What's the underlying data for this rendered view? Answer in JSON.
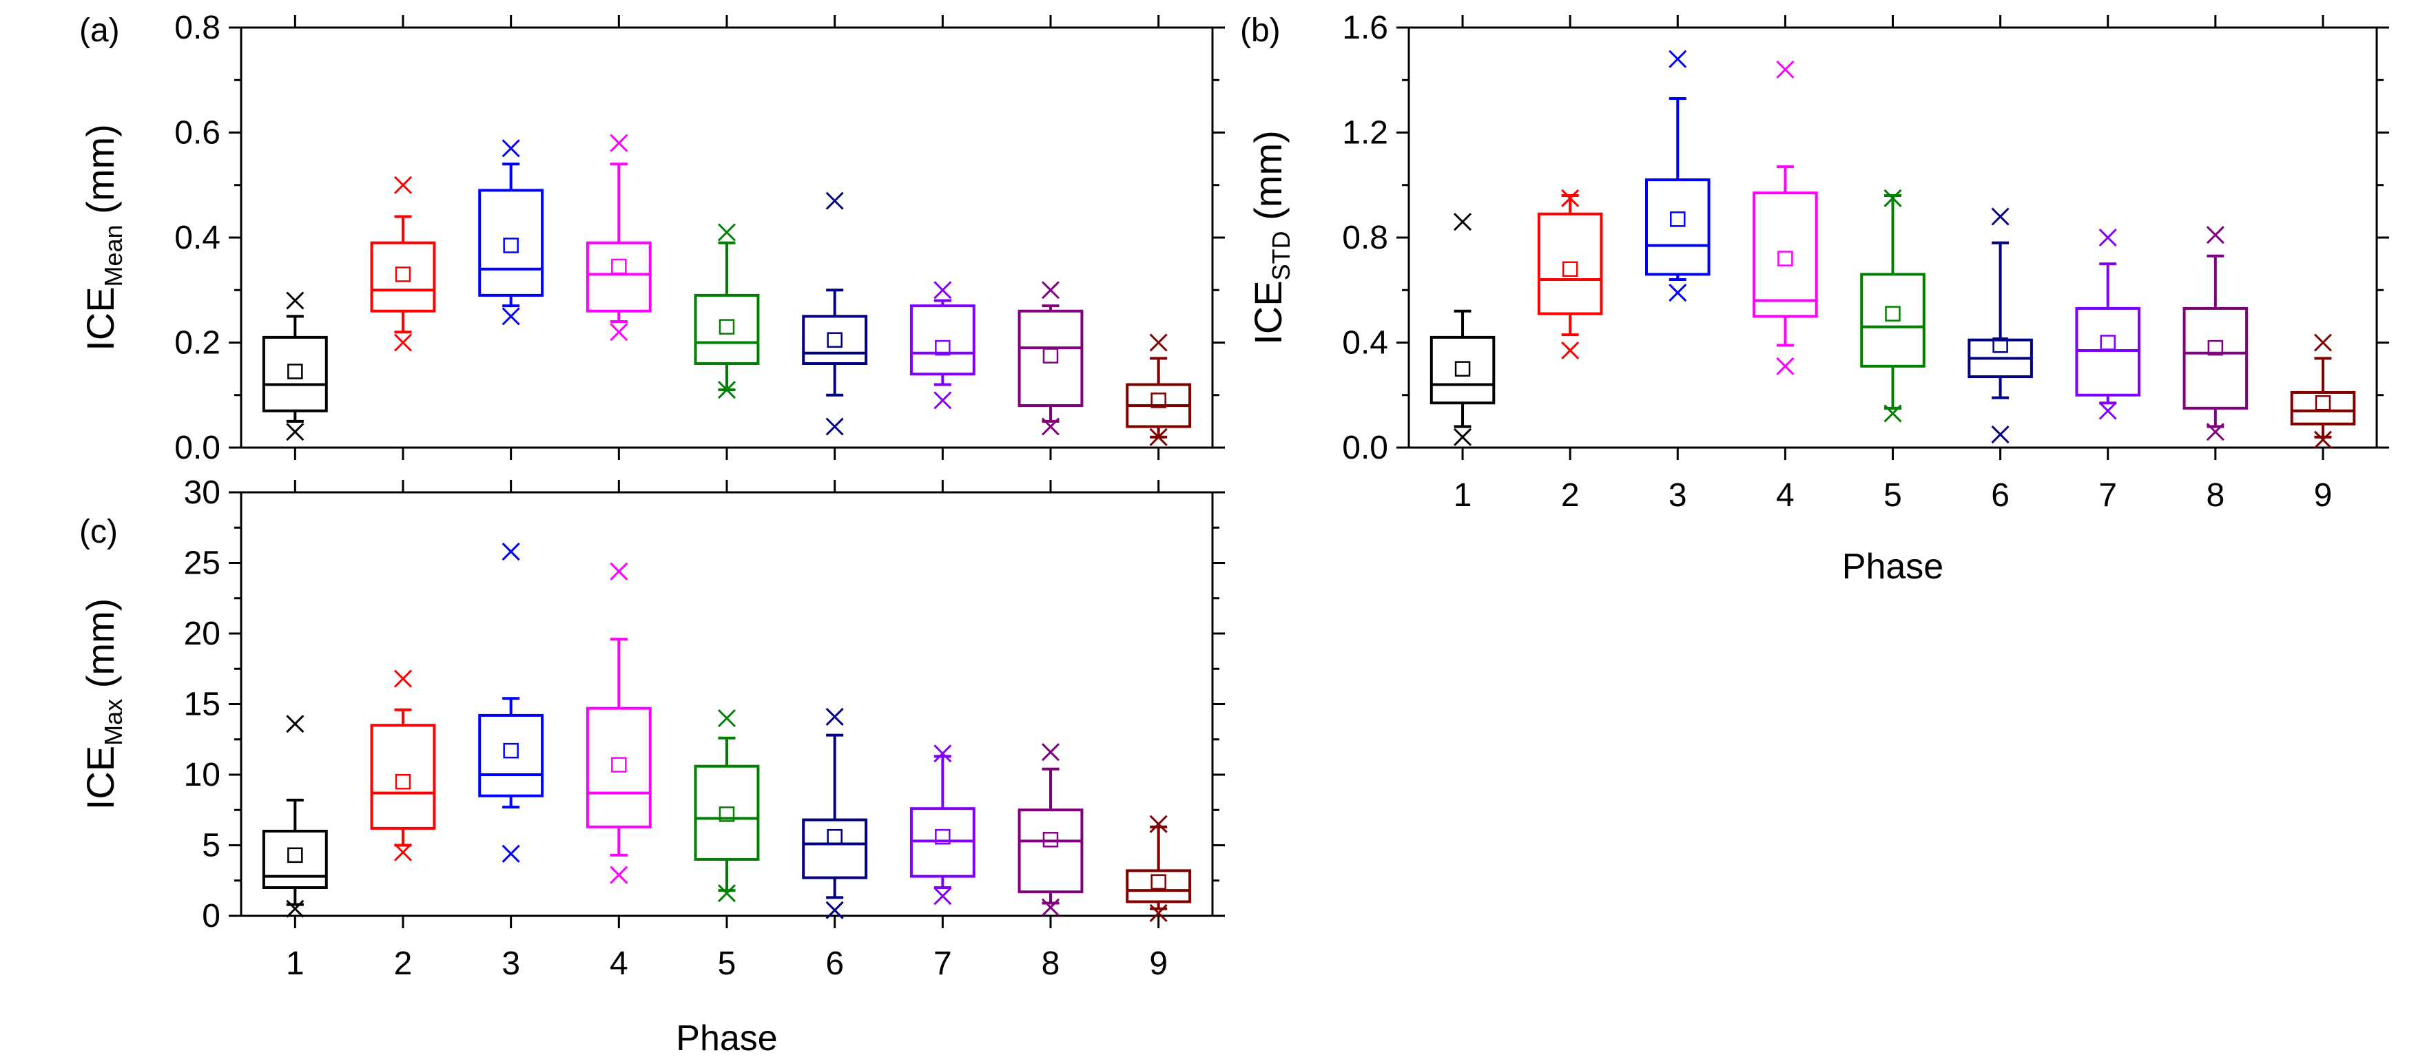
{
  "chart_data": [
    {
      "type": "box",
      "panel_label": "(a)",
      "ylabel_main": "ICE",
      "ylabel_sub": "Mean",
      "ylabel_unit": " (mm)",
      "xlabel": "",
      "categories": [
        "1",
        "2",
        "3",
        "4",
        "5",
        "6",
        "7",
        "8",
        "9"
      ],
      "ylim": [
        0,
        0.8
      ],
      "yticks": [
        0.0,
        0.2,
        0.4,
        0.6,
        0.8
      ],
      "ytick_labels": [
        "0.0",
        "0.2",
        "0.4",
        "0.6",
        "0.8"
      ],
      "show_xtick_labels": false,
      "boxes": [
        {
          "q1": 0.07,
          "median": 0.12,
          "q3": 0.21,
          "whisker_low": 0.05,
          "whisker_high": 0.25,
          "mean": 0.145,
          "min": 0.03,
          "max": 0.28
        },
        {
          "q1": 0.26,
          "median": 0.3,
          "q3": 0.39,
          "whisker_low": 0.22,
          "whisker_high": 0.44,
          "mean": 0.33,
          "min": 0.2,
          "max": 0.5
        },
        {
          "q1": 0.29,
          "median": 0.34,
          "q3": 0.49,
          "whisker_low": 0.27,
          "whisker_high": 0.54,
          "mean": 0.385,
          "min": 0.25,
          "max": 0.57
        },
        {
          "q1": 0.26,
          "median": 0.33,
          "q3": 0.39,
          "whisker_low": 0.24,
          "whisker_high": 0.54,
          "mean": 0.345,
          "min": 0.22,
          "max": 0.58
        },
        {
          "q1": 0.16,
          "median": 0.2,
          "q3": 0.29,
          "whisker_low": 0.11,
          "whisker_high": 0.39,
          "mean": 0.23,
          "min": 0.11,
          "max": 0.41
        },
        {
          "q1": 0.16,
          "median": 0.18,
          "q3": 0.25,
          "whisker_low": 0.1,
          "whisker_high": 0.3,
          "mean": 0.205,
          "min": 0.04,
          "max": 0.47
        },
        {
          "q1": 0.14,
          "median": 0.18,
          "q3": 0.27,
          "whisker_low": 0.12,
          "whisker_high": 0.28,
          "mean": 0.19,
          "min": 0.09,
          "max": 0.3
        },
        {
          "q1": 0.08,
          "median": 0.19,
          "q3": 0.26,
          "whisker_low": 0.05,
          "whisker_high": 0.27,
          "mean": 0.175,
          "min": 0.04,
          "max": 0.3
        },
        {
          "q1": 0.04,
          "median": 0.08,
          "q3": 0.12,
          "whisker_low": 0.02,
          "whisker_high": 0.17,
          "mean": 0.09,
          "min": 0.02,
          "max": 0.2
        }
      ]
    },
    {
      "type": "box",
      "panel_label": "(b)",
      "ylabel_main": "ICE",
      "ylabel_sub": "STD",
      "ylabel_unit": " (mm)",
      "xlabel": "Phase",
      "categories": [
        "1",
        "2",
        "3",
        "4",
        "5",
        "6",
        "7",
        "8",
        "9"
      ],
      "ylim": [
        0,
        1.6
      ],
      "yticks": [
        0.0,
        0.4,
        0.8,
        1.2,
        1.6
      ],
      "ytick_labels": [
        "0.0",
        "0.4",
        "0.8",
        "1.2",
        "1.6"
      ],
      "show_xtick_labels": true,
      "boxes": [
        {
          "q1": 0.17,
          "median": 0.24,
          "q3": 0.42,
          "whisker_low": 0.08,
          "whisker_high": 0.52,
          "mean": 0.3,
          "min": 0.04,
          "max": 0.86
        },
        {
          "q1": 0.51,
          "median": 0.64,
          "q3": 0.89,
          "whisker_low": 0.43,
          "whisker_high": 0.96,
          "mean": 0.68,
          "min": 0.37,
          "max": 0.95
        },
        {
          "q1": 0.66,
          "median": 0.77,
          "q3": 1.02,
          "whisker_low": 0.64,
          "whisker_high": 1.33,
          "mean": 0.87,
          "min": 0.59,
          "max": 1.48
        },
        {
          "q1": 0.5,
          "median": 0.56,
          "q3": 0.97,
          "whisker_low": 0.39,
          "whisker_high": 1.07,
          "mean": 0.72,
          "min": 0.31,
          "max": 1.44
        },
        {
          "q1": 0.31,
          "median": 0.46,
          "q3": 0.66,
          "whisker_low": 0.15,
          "whisker_high": 0.96,
          "mean": 0.51,
          "min": 0.13,
          "max": 0.95
        },
        {
          "q1": 0.27,
          "median": 0.34,
          "q3": 0.41,
          "whisker_low": 0.19,
          "whisker_high": 0.78,
          "mean": 0.39,
          "min": 0.05,
          "max": 0.88
        },
        {
          "q1": 0.2,
          "median": 0.37,
          "q3": 0.53,
          "whisker_low": 0.17,
          "whisker_high": 0.7,
          "mean": 0.4,
          "min": 0.14,
          "max": 0.8
        },
        {
          "q1": 0.15,
          "median": 0.36,
          "q3": 0.53,
          "whisker_low": 0.08,
          "whisker_high": 0.73,
          "mean": 0.38,
          "min": 0.06,
          "max": 0.81
        },
        {
          "q1": 0.09,
          "median": 0.14,
          "q3": 0.21,
          "whisker_low": 0.04,
          "whisker_high": 0.34,
          "mean": 0.17,
          "min": 0.03,
          "max": 0.4
        }
      ]
    },
    {
      "type": "box",
      "panel_label": "(c)",
      "ylabel_main": "ICE",
      "ylabel_sub": "Max",
      "ylabel_unit": " (mm)",
      "xlabel": "Phase",
      "categories": [
        "1",
        "2",
        "3",
        "4",
        "5",
        "6",
        "7",
        "8",
        "9"
      ],
      "ylim": [
        0,
        30
      ],
      "yticks": [
        0,
        5,
        10,
        15,
        20,
        25,
        30
      ],
      "ytick_labels": [
        "0",
        "5",
        "10",
        "15",
        "20",
        "25",
        "30"
      ],
      "show_xtick_labels": true,
      "boxes": [
        {
          "q1": 2.0,
          "median": 2.8,
          "q3": 6.0,
          "whisker_low": 0.8,
          "whisker_high": 8.2,
          "mean": 4.3,
          "min": 0.5,
          "max": 13.6
        },
        {
          "q1": 6.2,
          "median": 8.7,
          "q3": 13.5,
          "whisker_low": 5.0,
          "whisker_high": 14.6,
          "mean": 9.5,
          "min": 4.5,
          "max": 16.8
        },
        {
          "q1": 8.5,
          "median": 10.0,
          "q3": 14.2,
          "whisker_low": 7.7,
          "whisker_high": 15.4,
          "mean": 11.7,
          "min": 4.4,
          "max": 25.8
        },
        {
          "q1": 6.3,
          "median": 8.7,
          "q3": 14.7,
          "whisker_low": 4.3,
          "whisker_high": 19.6,
          "mean": 10.7,
          "min": 2.9,
          "max": 24.4
        },
        {
          "q1": 4.0,
          "median": 6.9,
          "q3": 10.6,
          "whisker_low": 1.8,
          "whisker_high": 12.6,
          "mean": 7.2,
          "min": 1.6,
          "max": 14.0
        },
        {
          "q1": 2.7,
          "median": 5.1,
          "q3": 6.8,
          "whisker_low": 1.3,
          "whisker_high": 12.8,
          "mean": 5.6,
          "min": 0.4,
          "max": 14.1
        },
        {
          "q1": 2.8,
          "median": 5.3,
          "q3": 7.6,
          "whisker_low": 2.0,
          "whisker_high": 11.3,
          "mean": 5.6,
          "min": 1.4,
          "max": 11.5
        },
        {
          "q1": 1.7,
          "median": 5.3,
          "q3": 7.5,
          "whisker_low": 0.9,
          "whisker_high": 10.4,
          "mean": 5.4,
          "min": 0.6,
          "max": 11.6
        },
        {
          "q1": 1.0,
          "median": 1.8,
          "q3": 3.2,
          "whisker_low": 0.5,
          "whisker_high": 6.3,
          "mean": 2.4,
          "min": 0.2,
          "max": 6.5
        }
      ]
    }
  ],
  "palette": [
    "#000000",
    "#ff0000",
    "#0000ff",
    "#ff00ff",
    "#008000",
    "#000080",
    "#8000ff",
    "#800080",
    "#800000"
  ]
}
